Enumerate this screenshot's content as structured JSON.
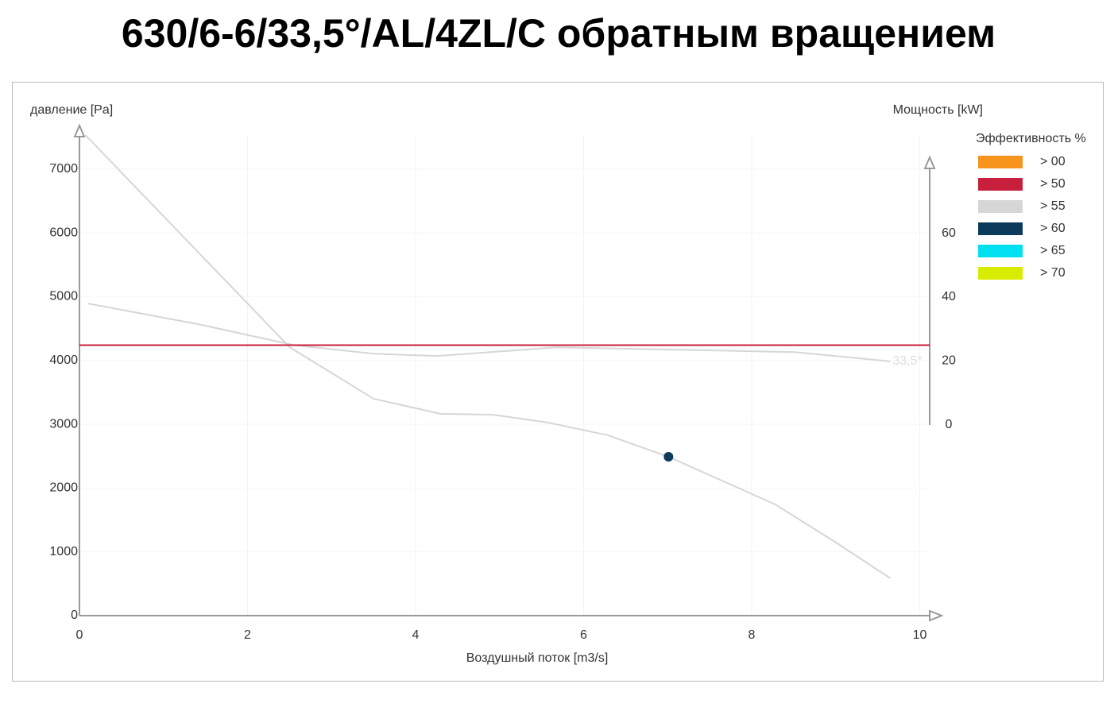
{
  "chart_data": {
    "type": "line",
    "title": "630/6-6/33,5°/AL/4ZL/C обратным вращением",
    "x_label": "Воздушный поток [m3/s]",
    "y_label": "давление [Pa]",
    "y2_label": "Мощность [kW]",
    "annotation": "33,5°",
    "xlim": [
      0,
      10.26
    ],
    "ylim": [
      0,
      7620
    ],
    "y2lim": [
      0,
      82
    ],
    "xticks": [
      0,
      2,
      4,
      6,
      8,
      10
    ],
    "yticks": [
      0,
      1000,
      2000,
      3000,
      4000,
      5000,
      6000,
      7000
    ],
    "y2ticks": [
      0,
      20,
      40,
      60
    ],
    "grid": true,
    "series": [
      {
        "color": "#d6d6d6",
        "x": [
          0.07,
          2.5,
          3.5,
          4.3,
          4.92,
          5.58,
          6.29,
          7.01,
          8.28,
          8.99,
          9.65
        ],
        "values": [
          7534,
          4209,
          3400,
          3163,
          3150,
          3026,
          2827,
          2490,
          1743,
          1158,
          585
        ]
      },
      {
        "color": "#d6d6d6",
        "axis": "y2",
        "x": [
          0.1,
          1.42,
          2.55,
          3.5,
          4.26,
          5.68,
          7.0,
          8.51,
          9.65
        ],
        "values": [
          38,
          31.5,
          25,
          22.3,
          21.6,
          24.3,
          23.6,
          22.8,
          19.9
        ]
      },
      {
        "color": "#c8203c",
        "x": [
          0,
          10.12
        ],
        "values": [
          4240,
          4240
        ]
      },
      {
        "type": "scatter",
        "color": "#0b3a5a",
        "x": [
          7.01
        ],
        "values": [
          2490
        ]
      }
    ],
    "legend": {
      "title": "Эффективность %",
      "position": "right",
      "items": [
        {
          "label": "> 00",
          "color": "#f7941d"
        },
        {
          "label": "> 50",
          "color": "#c8203c"
        },
        {
          "label": "> 55",
          "color": "#d6d6d6"
        },
        {
          "label": "> 60",
          "color": "#0b3a5a"
        },
        {
          "label": "> 65",
          "color": "#00e0f0"
        },
        {
          "label": "> 70",
          "color": "#d8ec00"
        }
      ]
    }
  }
}
